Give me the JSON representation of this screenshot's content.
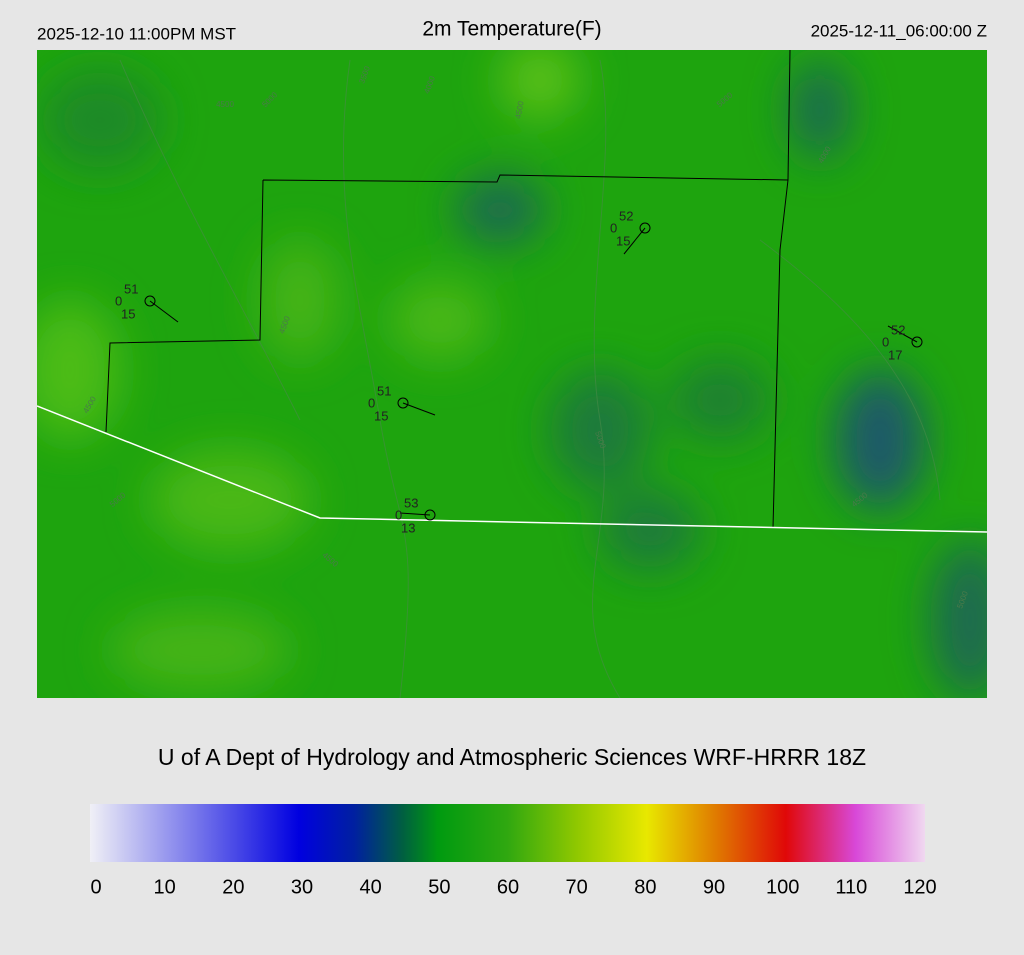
{
  "header": {
    "local_time": "2025-12-10 11:00PM MST",
    "title": "2m Temperature(F)",
    "utc_time": "2025-12-11_06:00:00 Z"
  },
  "stations": [
    {
      "temperature": "51",
      "pressure": "0",
      "dewpoint": "15"
    },
    {
      "temperature": "52",
      "pressure": "0",
      "dewpoint": "15"
    },
    {
      "temperature": "51",
      "pressure": "0",
      "dewpoint": "15"
    },
    {
      "temperature": "53",
      "pressure": "0",
      "dewpoint": "13"
    },
    {
      "temperature": "52",
      "pressure": "0",
      "dewpoint": "17"
    }
  ],
  "contour_labels": [
    "3500",
    "4000",
    "4500",
    "5000",
    "4500",
    "4000",
    "5000",
    "4500",
    "4500",
    "5000",
    "4500",
    "5000",
    "4500",
    "5000"
  ],
  "credit": "U of A Dept of Hydrology and Atmospheric Sciences WRF-HRRR 18Z",
  "colorbar": {
    "ticks": [
      0,
      10,
      20,
      30,
      40,
      50,
      60,
      70,
      80,
      90,
      100,
      110,
      120
    ],
    "stops": [
      {
        "value": 0,
        "color": "#f0f0f6"
      },
      {
        "value": 30,
        "color": "#0000e0"
      },
      {
        "value": 38,
        "color": "#0020a0"
      },
      {
        "value": 45,
        "color": "#006040"
      },
      {
        "value": 50,
        "color": "#009a10"
      },
      {
        "value": 60,
        "color": "#30a810"
      },
      {
        "value": 70,
        "color": "#90c800"
      },
      {
        "value": 80,
        "color": "#e8e800"
      },
      {
        "value": 90,
        "color": "#e07a00"
      },
      {
        "value": 100,
        "color": "#e00808"
      },
      {
        "value": 110,
        "color": "#d848d8"
      },
      {
        "value": 120,
        "color": "#f0d8f0"
      }
    ]
  }
}
